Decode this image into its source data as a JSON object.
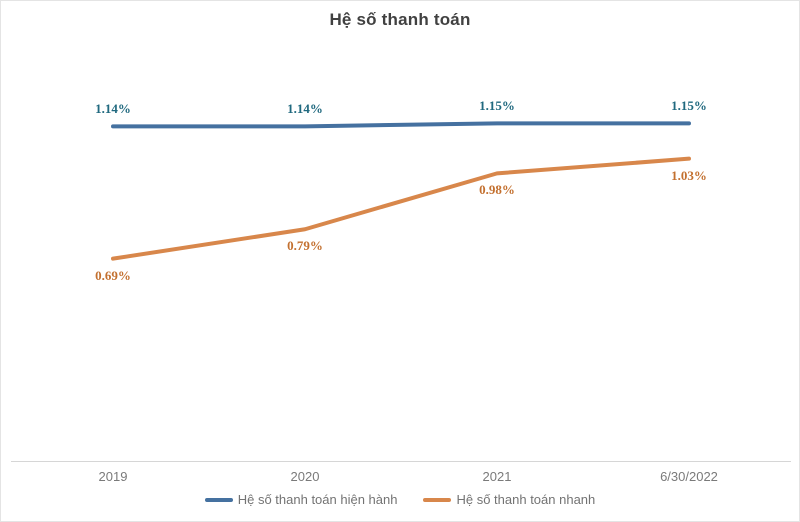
{
  "title": "Hệ số thanh toán",
  "chart_data": {
    "type": "line",
    "title": "Hệ số thanh toán",
    "categories": [
      "2019",
      "2020",
      "2021",
      "6/30/2022"
    ],
    "series": [
      {
        "name": "Hệ số thanh toán hiện hành",
        "values": [
          1.14,
          1.14,
          1.15,
          1.15
        ],
        "labels": [
          "1.14%",
          "1.14%",
          "1.15%",
          "1.15%"
        ],
        "color": "#4571A0",
        "label_color": "#20697F",
        "label_side": "above"
      },
      {
        "name": "Hệ số thanh toán nhanh",
        "values": [
          0.69,
          0.79,
          0.98,
          1.03
        ],
        "labels": [
          "0.69%",
          "0.79%",
          "0.98%",
          "1.03%"
        ],
        "color": "#D8874B",
        "label_color": "#C3702F",
        "label_side": "below"
      }
    ],
    "ylim": [
      0,
      1.5
    ],
    "grid": false,
    "data_labels": true,
    "legend_position": "bottom"
  },
  "colors": {
    "background": "#FFFFFF",
    "frame_border": "#E4E4E4",
    "axis_line": "#D6D6D6",
    "axis_label_text": "#7A7A7A",
    "legend_text": "#737373",
    "title_text": "#414141"
  }
}
